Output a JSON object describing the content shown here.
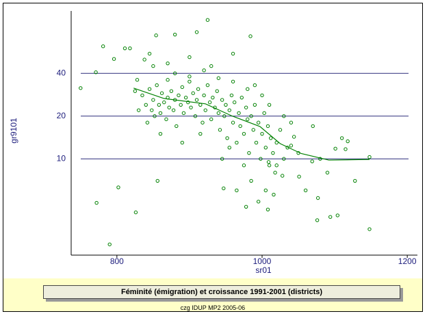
{
  "chart_data": {
    "type": "scatter",
    "xlabel": "sr01",
    "ylabel": "gr9101",
    "xlim": [
      737,
      1214
    ],
    "xticks": [
      800,
      1000,
      1200
    ],
    "ylim": [
      2.1,
      110
    ],
    "yticks": [
      10,
      20,
      40
    ],
    "ylog": true,
    "grid": true,
    "series": [
      {
        "color": "#008000",
        "style": "points",
        "x": [
          750,
          772,
          790,
          781,
          771,
          802,
          796,
          811,
          818,
          856,
          826,
          854,
          880,
          925,
          910,
          984,
          1051,
          1077,
          1076,
          1094,
          1104,
          1148,
          1148,
          1128,
          1115,
          1101,
          1118,
          1069,
          1040,
          1044,
          1009,
          1028,
          1016,
          1008,
          978,
          947,
          835,
          840,
          842,
          845,
          848,
          850,
          852,
          855,
          858,
          860,
          862,
          865,
          868,
          870,
          872,
          875,
          878,
          880,
          882,
          885,
          888,
          890,
          892,
          895,
          898,
          900,
          902,
          905,
          908,
          910,
          912,
          915,
          918,
          920,
          922,
          925,
          928,
          930,
          932,
          935,
          938,
          940,
          942,
          945,
          948,
          950,
          952,
          955,
          958,
          960,
          962,
          965,
          968,
          970,
          972,
          975,
          978,
          980,
          982,
          985,
          988,
          990,
          992,
          995,
          998,
          1000,
          1003,
          1005,
          1008,
          1010,
          1012,
          1015,
          1018,
          1020,
          1025,
          1030,
          1035,
          1040,
          900,
          880,
          870,
          860,
          850,
          890,
          920,
          940,
          960,
          980,
          1000,
          1010,
          1030,
          930,
          915,
          955,
          975,
          965,
          945,
          985,
          995,
          1005,
          1020,
          825,
          830,
          828,
          838,
          845,
          870,
          900,
          960,
          990,
          1060,
          1050,
          1070,
          1080,
          1090,
          1110
        ],
        "values": [
          31.5,
          4.9,
          2.5,
          62,
          40.7,
          6.3,
          50.5,
          60,
          60,
          7,
          4.2,
          74,
          75,
          95,
          78,
          73,
          7.5,
          5.3,
          3.7,
          3.9,
          4.0,
          3.2,
          10.3,
          7.0,
          11.7,
          11.8,
          13.3,
          9.6,
          12.4,
          14.3,
          9.5,
          7.6,
          5.6,
          4.4,
          4.6,
          6.2,
          28,
          24,
          18,
          31,
          22,
          26,
          20,
          33,
          24,
          21,
          29,
          25,
          19,
          27,
          23,
          30,
          22,
          26,
          17,
          28,
          24,
          32,
          21,
          27,
          25,
          35,
          23,
          29,
          20,
          26,
          31,
          24,
          18,
          28,
          22,
          33,
          25,
          19,
          27,
          23,
          30,
          21,
          16,
          26,
          20,
          24,
          14,
          22,
          28,
          18,
          25,
          13,
          21,
          17,
          27,
          15,
          23,
          19,
          11,
          20,
          16,
          24,
          13,
          18,
          10,
          15,
          21,
          12,
          17,
          9,
          14,
          11,
          8,
          13,
          16,
          10,
          12,
          18,
          38,
          40,
          36,
          15,
          45,
          13,
          42,
          37,
          35,
          31,
          28,
          24,
          20,
          45,
          15,
          12,
          9,
          6,
          10,
          7,
          5,
          6,
          9,
          30,
          22,
          36,
          50,
          55,
          47,
          52,
          55,
          33,
          6,
          11,
          17,
          10,
          8,
          14
        ]
      },
      {
        "color": "#008000",
        "style": "line",
        "x": [
          823,
          865,
          922,
          959,
          997,
          1025,
          1054,
          1092,
          1148
        ],
        "values": [
          31.5,
          26.6,
          24.4,
          20,
          16.9,
          12.8,
          10.9,
          9.8,
          9.9
        ]
      }
    ]
  },
  "title_box": "Féminité (émigration) et croissance 1991-2001 (districts)",
  "footer": "czg IDUP MP2 2005-06"
}
